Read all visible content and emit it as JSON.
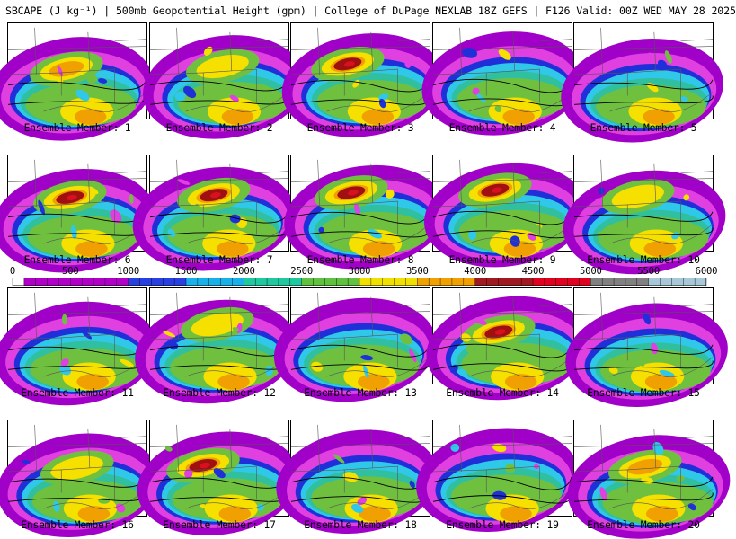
{
  "title": "SBCAPE (J kg⁻¹) | 500mb Geopotential Height (gpm) | College of DuPage NEXLAB 18Z GEFS | F126 Valid: 00Z WED MAY 28 2025",
  "panel_label_prefix": "Ensemble Member: ",
  "members": [
    {
      "id": 1,
      "label": "1",
      "intensity": 2
    },
    {
      "id": 2,
      "label": "2",
      "intensity": 1
    },
    {
      "id": 3,
      "label": "3",
      "intensity": 3
    },
    {
      "id": 4,
      "label": "4",
      "intensity": 0
    },
    {
      "id": 5,
      "label": "5",
      "intensity": 0
    },
    {
      "id": 6,
      "label": "6",
      "intensity": 3
    },
    {
      "id": 7,
      "label": "7",
      "intensity": 3
    },
    {
      "id": 8,
      "label": "8",
      "intensity": 3
    },
    {
      "id": 9,
      "label": "9",
      "intensity": 3
    },
    {
      "id": 10,
      "label": "10",
      "intensity": 1
    },
    {
      "id": 11,
      "label": "11",
      "intensity": 0
    },
    {
      "id": 12,
      "label": "12",
      "intensity": 1
    },
    {
      "id": 13,
      "label": "13",
      "intensity": 0
    },
    {
      "id": 14,
      "label": "14",
      "intensity": 3
    },
    {
      "id": 15,
      "label": "15",
      "intensity": 0
    },
    {
      "id": 16,
      "label": "16",
      "intensity": 1
    },
    {
      "id": 17,
      "label": "17",
      "intensity": 3
    },
    {
      "id": 18,
      "label": "18",
      "intensity": 0
    },
    {
      "id": 19,
      "label": "19",
      "intensity": 0
    },
    {
      "id": 20,
      "label": "20",
      "intensity": 2
    }
  ],
  "colorbar": {
    "ticks": [
      "0",
      "500",
      "1000",
      "1500",
      "2000",
      "2500",
      "3000",
      "3500",
      "4000",
      "4500",
      "5000",
      "5500",
      "6000"
    ],
    "min": 0,
    "max": 6000,
    "step": 100,
    "colors": [
      {
        "from": 0,
        "to": 100,
        "color": "#ffffff"
      },
      {
        "from": 100,
        "to": 1000,
        "color": "#b000c8"
      },
      {
        "from": 1000,
        "to": 1500,
        "color": "#2840e0"
      },
      {
        "from": 1500,
        "to": 2000,
        "color": "#18b0e8"
      },
      {
        "from": 2000,
        "to": 2500,
        "color": "#20c8a0"
      },
      {
        "from": 2500,
        "to": 3000,
        "color": "#60c040"
      },
      {
        "from": 3000,
        "to": 3500,
        "color": "#f0e000"
      },
      {
        "from": 3500,
        "to": 4000,
        "color": "#f0a000"
      },
      {
        "from": 4000,
        "to": 4500,
        "color": "#a01820"
      },
      {
        "from": 4500,
        "to": 5000,
        "color": "#e00020"
      },
      {
        "from": 5000,
        "to": 5500,
        "color": "#808080"
      },
      {
        "from": 5500,
        "to": 6000,
        "color": "#a8c8d8"
      }
    ]
  },
  "palette": {
    "purple": "#a000c8",
    "magenta": "#e040e0",
    "blue": "#2030d8",
    "cyan": "#30c8e8",
    "teal": "#30c0a0",
    "green": "#70c040",
    "yellow": "#f5e000",
    "orange": "#f0a000",
    "darkred": "#a01010",
    "red": "#d81020"
  }
}
